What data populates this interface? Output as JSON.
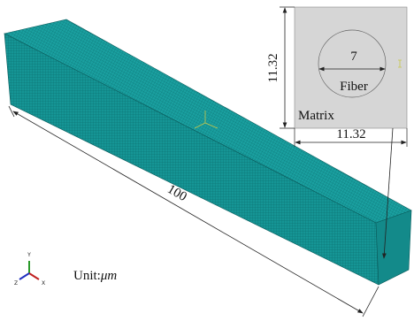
{
  "inset": {
    "height_label": "11.32",
    "width_label": "11.32",
    "diameter_label": "7",
    "fiber_label": "Fiber",
    "matrix_label": "Matrix"
  },
  "beam": {
    "length_label": "100"
  },
  "triad": {
    "y": "Y",
    "z": "Z",
    "x": "X"
  },
  "unit": {
    "prefix": "Unit:",
    "symbol": "μm"
  }
}
